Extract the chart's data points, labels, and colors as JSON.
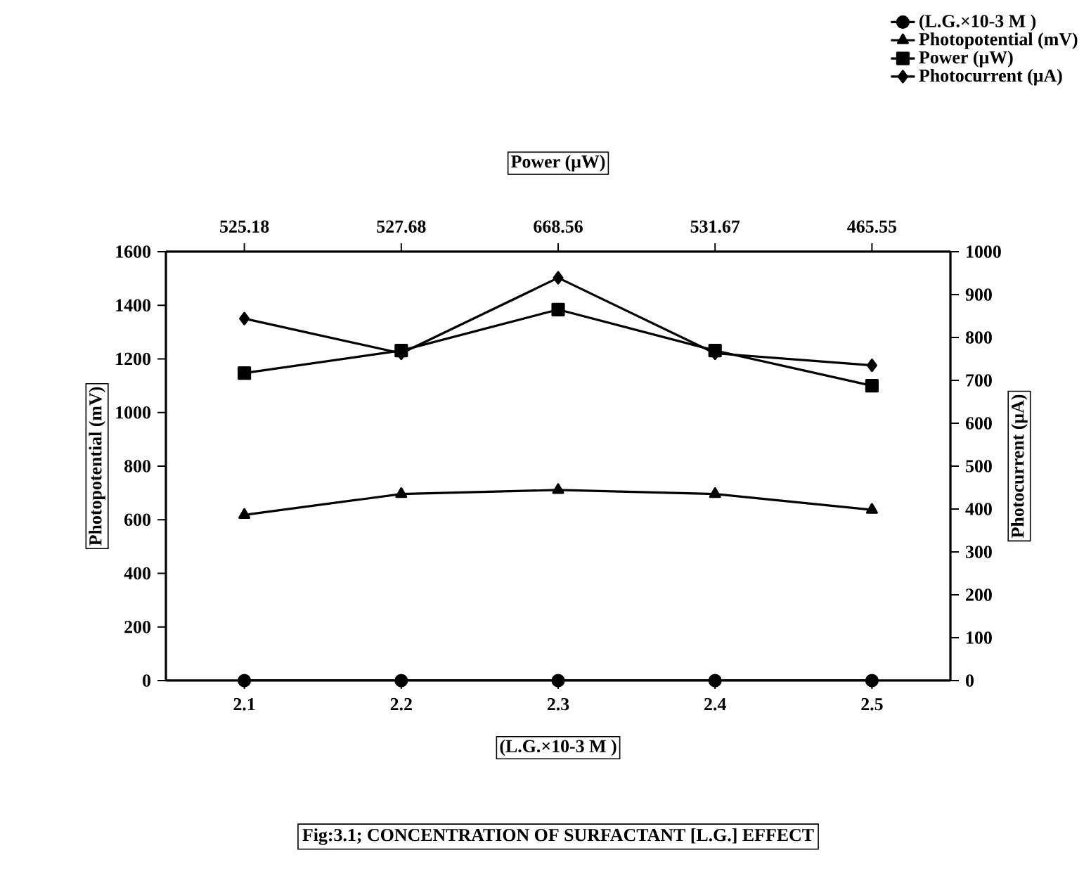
{
  "chart_data": {
    "type": "line",
    "xlabel": "(L.G.×10-3 M )",
    "ylabel": "Photopotential (mV)",
    "y2label": "Photocurrent (μA)",
    "x2label": "Power (μW)",
    "annotations": [
      "Fig:3.1; CONCENTRATION OF SURFACTANT [L.G.] EFFECT",
      {
        "text": "525.18",
        "x": "2.1"
      },
      {
        "text": "527.68",
        "x": "2.2"
      },
      {
        "text": "668.56",
        "x": "2.3"
      },
      {
        "text": "531.67",
        "x": "2.4"
      },
      {
        "text": "465.55",
        "x": "2.5"
      }
    ],
    "categories": [
      "2.1",
      "2.2",
      "2.3",
      "2.4",
      "2.5"
    ],
    "ylim": [
      0,
      1600
    ],
    "yticks": [
      0,
      200,
      400,
      600,
      800,
      1000,
      1200,
      1400,
      1600
    ],
    "y2lim": [
      0,
      1000
    ],
    "y2ticks": [
      0,
      100,
      200,
      300,
      400,
      500,
      600,
      700,
      800,
      900,
      1000
    ],
    "legend": "top right",
    "grid": false,
    "line_style": "solid",
    "series": [
      {
        "name": "(L.G.×10-3 M )",
        "color": "#000000",
        "marker": "circle",
        "values": [
          0,
          0,
          0,
          0,
          0
        ]
      },
      {
        "name": "Photopotential (mV)",
        "color": "#000000",
        "marker": "triangle",
        "values": [
          618,
          696,
          711,
          696,
          637
        ]
      },
      {
        "name": "Power (μW)",
        "color": "#000000",
        "marker": "square",
        "values": [
          1147,
          1231,
          1384,
          1231,
          1100
        ]
      },
      {
        "name": "Photocurrent (μA)",
        "color": "#000000",
        "marker": "diamond",
        "axis": "y2",
        "values": [
          844,
          763,
          939,
          763,
          735
        ]
      }
    ]
  }
}
